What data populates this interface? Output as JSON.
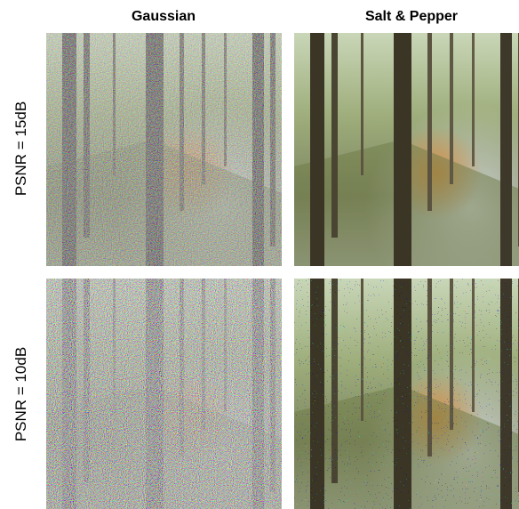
{
  "columns": [
    "Gaussian",
    "Salt & Pepper"
  ],
  "rows": [
    "PSNR = 15dB",
    "PSNR = 10dB"
  ]
}
